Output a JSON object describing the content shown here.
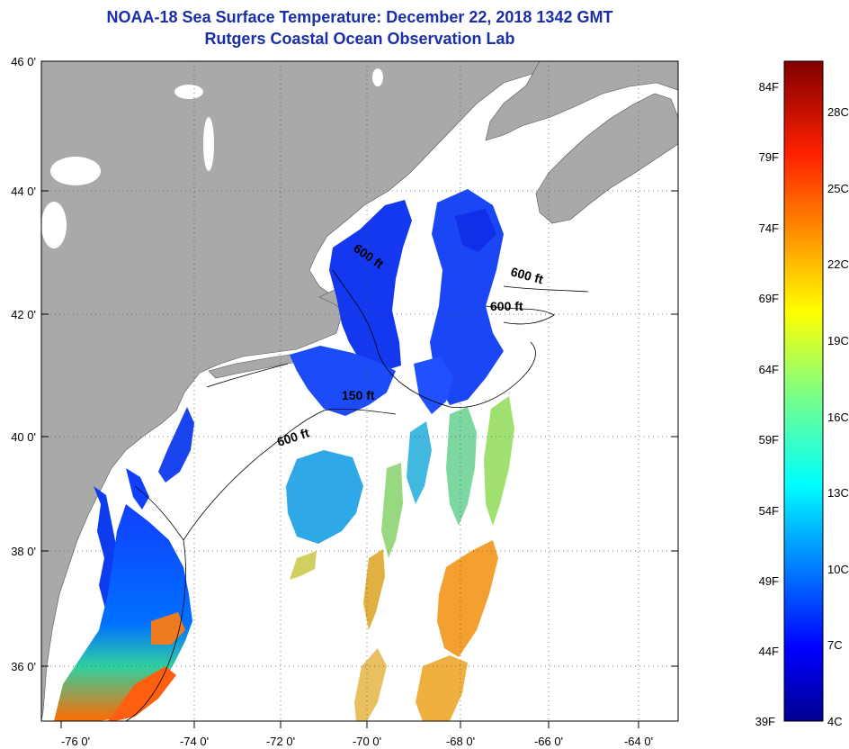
{
  "title": {
    "line1": "NOAA-18 Sea Surface Temperature:  December 22, 2018 1342 GMT",
    "line2": "Rutgers Coastal Ocean Observation Lab"
  },
  "map": {
    "lat_labels": [
      "46 0'",
      "44 0'",
      "42 0'",
      "40 0'",
      "38 0'",
      "36 0'"
    ],
    "lon_labels": [
      "-76 0'",
      "-74 0'",
      "-72 0'",
      "-70 0'",
      "-68 0'",
      "-66 0'",
      "-64 0'"
    ],
    "contour_labels": [
      "600 ft",
      "600 ft",
      "600 ft",
      "150 ft",
      "600 ft"
    ],
    "colors": {
      "land": "#a9a9a9",
      "ocean": "#ffffff",
      "lakes": "#ffffff"
    }
  },
  "colorbar": {
    "fahrenheit": [
      "84F",
      "79F",
      "74F",
      "69F",
      "64F",
      "59F",
      "54F",
      "49F",
      "44F",
      "39F"
    ],
    "celsius": [
      "28C",
      "25C",
      "22C",
      "19C",
      "16C",
      "13C",
      "10C",
      "7C",
      "4C"
    ],
    "colors": [
      "#00008f",
      "#0000ff",
      "#0080ff",
      "#00ffff",
      "#80ff80",
      "#ffff00",
      "#ff8000",
      "#ff0000",
      "#800000"
    ]
  }
}
